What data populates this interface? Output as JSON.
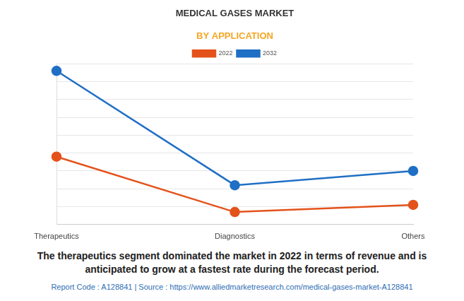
{
  "chart_data": {
    "type": "line",
    "title": "MEDICAL GASES MARKET",
    "subtitle": "BY APPLICATION",
    "categories": [
      "Therapeutics",
      "Diagnostics",
      "Others"
    ],
    "series": [
      {
        "name": "2022",
        "color": "#e4521b",
        "values": [
          3.8,
          0.7,
          1.1
        ]
      },
      {
        "name": "2032",
        "color": "#1f6fc5",
        "values": [
          8.6,
          2.2,
          3.0
        ]
      }
    ],
    "ylim": [
      0,
      9
    ],
    "yticks": [
      0,
      1,
      2,
      3,
      4,
      5,
      6,
      7,
      8,
      9
    ],
    "grid": true,
    "legend": "top",
    "tick_labels": "x",
    "caption": "The therapeutics segment dominated the market in 2022 in terms of revenue and is anticipated to grow at a fastest rate during the forecast period.",
    "source": "Report Code : A128841  |  Source : https://www.alliedmarketresearch.com/medical-gases-market-A128841"
  }
}
